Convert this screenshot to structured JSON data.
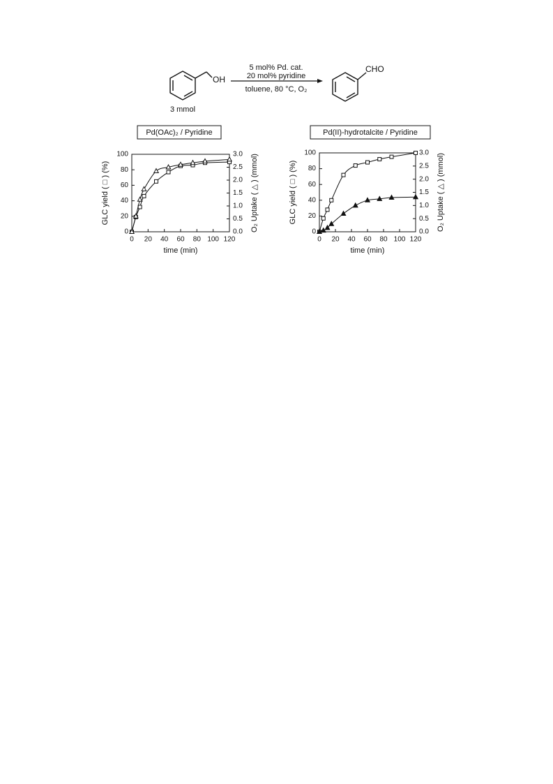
{
  "scheme": {
    "reactant_group": "OH",
    "reactant_amount": "3 mmol",
    "product_group": "CHO",
    "conditions": [
      "5 mol% Pd. cat.",
      "20 mol% pyridine",
      "toluene, 80 °C, O₂"
    ]
  },
  "chart_data": [
    {
      "type": "line",
      "title": "Pd(OAc)₂ / Pyridine",
      "xlabel": "time (min)",
      "ylabel": "GLC yield ( □ ) (%)",
      "y2label": "O₂ Uptake ( △ ) (mmol)",
      "x": [
        0,
        5,
        10,
        15,
        30,
        45,
        60,
        75,
        90,
        120
      ],
      "series": [
        {
          "color": "#111111",
          "marker": "square",
          "filled": false,
          "values": [
            0,
            19,
            32,
            46,
            65,
            77,
            85,
            86,
            89,
            90
          ]
        },
        {
          "color": "#111111",
          "marker": "triangle",
          "filled": false,
          "axis": "y2",
          "values": [
            0,
            0.6,
            1.25,
            1.65,
            2.35,
            2.5,
            2.6,
            2.67,
            2.73,
            2.8
          ]
        }
      ],
      "xlim": [
        0,
        120
      ],
      "xticks": [
        0,
        20,
        40,
        60,
        80,
        100,
        120
      ],
      "ylim": [
        0,
        100
      ],
      "yticks": [
        0,
        20,
        40,
        60,
        80,
        100
      ],
      "y2lim": [
        0,
        3
      ],
      "y2ticks": [
        {
          "value": 0,
          "label": "0.0"
        },
        0.5,
        {
          "value": 1,
          "label": "1.0"
        },
        1.5,
        {
          "value": 2,
          "label": "2.0"
        },
        2.5,
        {
          "value": 3,
          "label": "3.0"
        }
      ]
    },
    {
      "type": "line",
      "title": "Pd(II)-hydrotalcite / Pyridine",
      "xlabel": "time (min)",
      "ylabel": "GLC yield ( □ ) (%)",
      "y2label": "O₂ Uptake ( △ ) (mmol)",
      "x": [
        0,
        5,
        10,
        15,
        30,
        45,
        60,
        75,
        90,
        120
      ],
      "series": [
        {
          "color": "#111111",
          "marker": "square",
          "filled": false,
          "values": [
            0,
            17,
            28,
            40,
            72,
            84,
            88,
            92,
            95,
            100
          ]
        },
        {
          "color": "#111111",
          "marker": "triangle",
          "filled": true,
          "axis": "y2",
          "values": [
            0,
            0.05,
            0.15,
            0.3,
            0.69,
            1.0,
            1.2,
            1.25,
            1.3,
            1.32
          ]
        }
      ],
      "xlim": [
        0,
        120
      ],
      "xticks": [
        0,
        20,
        40,
        60,
        80,
        100,
        120
      ],
      "ylim": [
        0,
        100
      ],
      "yticks": [
        0,
        20,
        40,
        60,
        80,
        100
      ],
      "y2lim": [
        0,
        3
      ],
      "y2ticks": [
        {
          "value": 0,
          "label": "0.0"
        },
        0.5,
        {
          "value": 1,
          "label": "1.0"
        },
        1.5,
        {
          "value": 2,
          "label": "2.0"
        },
        2.5,
        {
          "value": 3,
          "label": "3.0"
        }
      ]
    }
  ]
}
